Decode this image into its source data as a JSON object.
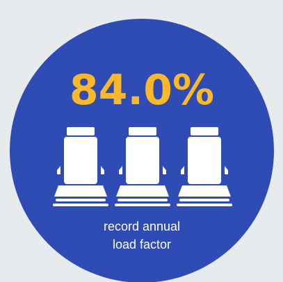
{
  "headline": "84.0%",
  "caption": [
    "record annual",
    "load factor"
  ]
}
